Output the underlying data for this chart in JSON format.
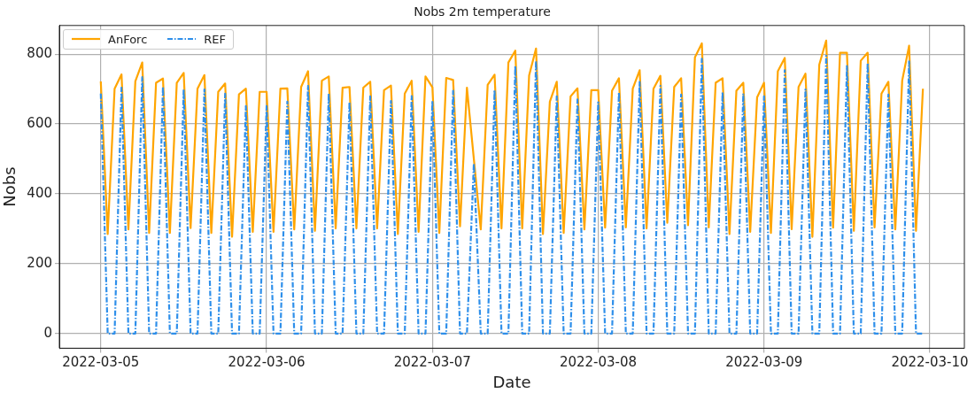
{
  "chart_data": {
    "type": "line",
    "title": "Nobs 2m temperature",
    "xlabel": "Date",
    "ylabel": "Nobs",
    "x": [
      "2022-03-05T00:00",
      "2022-03-05T01:00",
      "2022-03-05T02:00",
      "2022-03-05T03:00",
      "2022-03-05T04:00",
      "2022-03-05T05:00",
      "2022-03-05T06:00",
      "2022-03-05T07:00",
      "2022-03-05T08:00",
      "2022-03-05T09:00",
      "2022-03-05T10:00",
      "2022-03-05T11:00",
      "2022-03-05T12:00",
      "2022-03-05T13:00",
      "2022-03-05T14:00",
      "2022-03-05T15:00",
      "2022-03-05T16:00",
      "2022-03-05T17:00",
      "2022-03-05T18:00",
      "2022-03-05T19:00",
      "2022-03-05T20:00",
      "2022-03-05T21:00",
      "2022-03-05T22:00",
      "2022-03-05T23:00",
      "2022-03-06T00:00",
      "2022-03-06T01:00",
      "2022-03-06T02:00",
      "2022-03-06T03:00",
      "2022-03-06T04:00",
      "2022-03-06T05:00",
      "2022-03-06T06:00",
      "2022-03-06T07:00",
      "2022-03-06T08:00",
      "2022-03-06T09:00",
      "2022-03-06T10:00",
      "2022-03-06T11:00",
      "2022-03-06T12:00",
      "2022-03-06T13:00",
      "2022-03-06T14:00",
      "2022-03-06T15:00",
      "2022-03-06T16:00",
      "2022-03-06T17:00",
      "2022-03-06T18:00",
      "2022-03-06T19:00",
      "2022-03-06T20:00",
      "2022-03-06T21:00",
      "2022-03-06T22:00",
      "2022-03-06T23:00",
      "2022-03-07T00:00",
      "2022-03-07T01:00",
      "2022-03-07T02:00",
      "2022-03-07T03:00",
      "2022-03-07T04:00",
      "2022-03-07T05:00",
      "2022-03-07T06:00",
      "2022-03-07T07:00",
      "2022-03-07T08:00",
      "2022-03-07T09:00",
      "2022-03-07T10:00",
      "2022-03-07T11:00",
      "2022-03-07T12:00",
      "2022-03-07T13:00",
      "2022-03-07T14:00",
      "2022-03-07T15:00",
      "2022-03-07T16:00",
      "2022-03-07T17:00",
      "2022-03-07T18:00",
      "2022-03-07T19:00",
      "2022-03-07T20:00",
      "2022-03-07T21:00",
      "2022-03-07T22:00",
      "2022-03-07T23:00",
      "2022-03-08T00:00",
      "2022-03-08T01:00",
      "2022-03-08T02:00",
      "2022-03-08T03:00",
      "2022-03-08T04:00",
      "2022-03-08T05:00",
      "2022-03-08T06:00",
      "2022-03-08T07:00",
      "2022-03-08T08:00",
      "2022-03-08T09:00",
      "2022-03-08T10:00",
      "2022-03-08T11:00",
      "2022-03-08T12:00",
      "2022-03-08T13:00",
      "2022-03-08T14:00",
      "2022-03-08T15:00",
      "2022-03-08T16:00",
      "2022-03-08T17:00",
      "2022-03-08T18:00",
      "2022-03-08T19:00",
      "2022-03-08T20:00",
      "2022-03-08T21:00",
      "2022-03-08T22:00",
      "2022-03-08T23:00",
      "2022-03-09T00:00",
      "2022-03-09T01:00",
      "2022-03-09T02:00",
      "2022-03-09T03:00",
      "2022-03-09T04:00",
      "2022-03-09T05:00",
      "2022-03-09T06:00",
      "2022-03-09T07:00",
      "2022-03-09T08:00",
      "2022-03-09T09:00",
      "2022-03-09T10:00",
      "2022-03-09T11:00",
      "2022-03-09T12:00",
      "2022-03-09T13:00",
      "2022-03-09T14:00",
      "2022-03-09T15:00",
      "2022-03-09T16:00",
      "2022-03-09T17:00",
      "2022-03-09T18:00",
      "2022-03-09T19:00",
      "2022-03-09T20:00",
      "2022-03-09T21:00",
      "2022-03-09T22:00",
      "2022-03-09T23:00"
    ],
    "series": [
      {
        "name": "AnForc",
        "color": "#ffa500",
        "line_style": "solid",
        "values": [
          722,
          285,
          701,
          742,
          298,
          722,
          776,
          288,
          718,
          730,
          288,
          718,
          746,
          302,
          701,
          740,
          288,
          692,
          716,
          277,
          685,
          701,
          291,
          692,
          692,
          291,
          701,
          702,
          298,
          706,
          751,
          294,
          724,
          736,
          301,
          704,
          706,
          301,
          704,
          721,
          301,
          697,
          710,
          285,
          687,
          724,
          291,
          736,
          705,
          288,
          732,
          726,
          307,
          704,
          500,
          298,
          712,
          741,
          301,
          776,
          810,
          301,
          739,
          816,
          285,
          664,
          721,
          288,
          679,
          702,
          298,
          697,
          697,
          303,
          695,
          731,
          304,
          701,
          754,
          301,
          701,
          738,
          317,
          706,
          731,
          310,
          791,
          831,
          304,
          718,
          731,
          285,
          695,
          718,
          291,
          676,
          718,
          288,
          751,
          789,
          299,
          706,
          744,
          277,
          770,
          839,
          303,
          804,
          804,
          294,
          781,
          804,
          304,
          687,
          721,
          298,
          724,
          824,
          294,
          701
        ]
      },
      {
        "name": "REF",
        "color": "#2e8fea",
        "line_style": "dashdot",
        "values": [
          687,
          0,
          0,
          704,
          0,
          0,
          734,
          0,
          0,
          707,
          0,
          0,
          699,
          0,
          0,
          699,
          0,
          0,
          687,
          0,
          0,
          651,
          0,
          0,
          651,
          0,
          0,
          664,
          0,
          0,
          709,
          0,
          0,
          687,
          0,
          0,
          662,
          0,
          0,
          679,
          0,
          0,
          666,
          0,
          0,
          680,
          0,
          0,
          666,
          0,
          0,
          695,
          0,
          0,
          487,
          0,
          0,
          697,
          0,
          0,
          766,
          0,
          0,
          781,
          0,
          0,
          679,
          0,
          0,
          670,
          0,
          0,
          662,
          0,
          0,
          691,
          0,
          0,
          720,
          0,
          0,
          709,
          0,
          0,
          684,
          0,
          0,
          787,
          0,
          0,
          691,
          0,
          0,
          687,
          0,
          0,
          679,
          0,
          0,
          754,
          0,
          0,
          699,
          0,
          0,
          795,
          0,
          0,
          766,
          0,
          0,
          774,
          0,
          0,
          684,
          0,
          0,
          779,
          0,
          0
        ]
      }
    ],
    "xlim": [
      "2022-03-04T18:00",
      "2022-03-10T05:00"
    ],
    "xticks": [
      "2022-03-05",
      "2022-03-06",
      "2022-03-07",
      "2022-03-08",
      "2022-03-09",
      "2022-03-10"
    ],
    "ylim": [
      -42,
      882
    ],
    "yticks": [
      0,
      200,
      400,
      600,
      800
    ],
    "grid": true,
    "legend": "top left",
    "marker": "none"
  }
}
